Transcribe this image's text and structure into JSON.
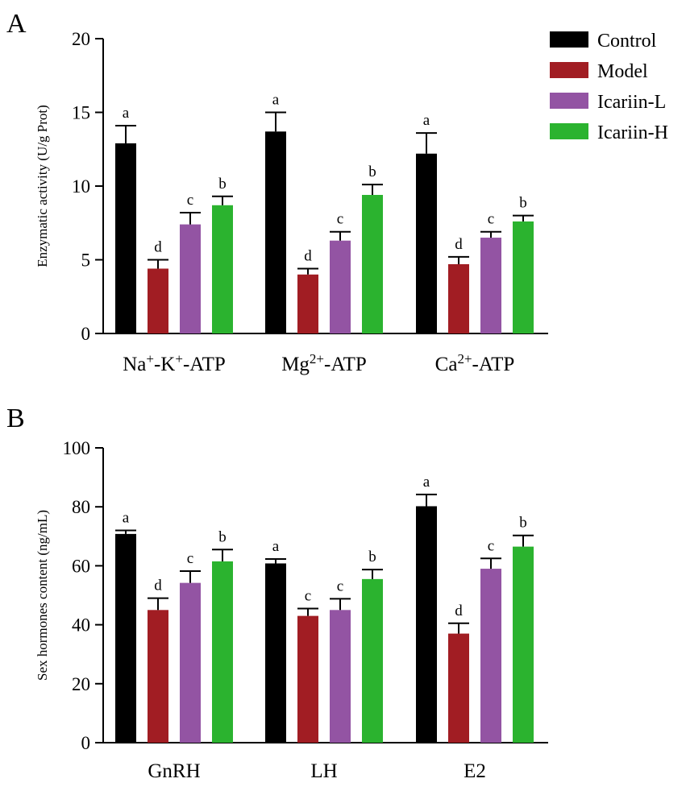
{
  "legend": [
    {
      "name": "Control",
      "color": "#000000"
    },
    {
      "name": "Model",
      "color": "#a11d23"
    },
    {
      "name": "Icariin-L",
      "color": "#9354a3"
    },
    {
      "name": "Icariin-H",
      "color": "#2bb32f"
    }
  ],
  "chart_data": [
    {
      "panel_label": "A",
      "type": "bar",
      "title": "",
      "xlabel": "",
      "ylabel": "Enzymatic activity (U/g Prot)",
      "ylim": [
        0,
        20
      ],
      "yticks": [
        "0",
        "5",
        "10",
        "15",
        "20"
      ],
      "ytick_values": [
        0,
        5,
        10,
        15,
        20
      ],
      "categories": [
        {
          "base": "Na",
          "parts": [
            [
              "Na",
              false
            ],
            [
              "+",
              true
            ],
            [
              "-K",
              false
            ],
            [
              "+",
              true
            ],
            [
              "-ATP",
              false
            ]
          ]
        },
        {
          "base": "Mg",
          "parts": [
            [
              "Mg",
              false
            ],
            [
              "2+",
              true
            ],
            [
              "-ATP",
              false
            ]
          ]
        },
        {
          "base": "Ca",
          "parts": [
            [
              "Ca",
              false
            ],
            [
              "2+",
              true
            ],
            [
              "-ATP",
              false
            ]
          ]
        }
      ],
      "series": [
        {
          "name": "Control",
          "values": [
            12.9,
            13.7,
            12.2
          ],
          "errors": [
            1.2,
            1.3,
            1.4
          ],
          "letters": [
            "a",
            "a",
            "a"
          ]
        },
        {
          "name": "Model",
          "values": [
            4.4,
            4.0,
            4.7
          ],
          "errors": [
            0.6,
            0.4,
            0.5
          ],
          "letters": [
            "d",
            "d",
            "d"
          ]
        },
        {
          "name": "Icariin-L",
          "values": [
            7.4,
            6.3,
            6.5
          ],
          "errors": [
            0.8,
            0.6,
            0.4
          ],
          "letters": [
            "c",
            "c",
            "c"
          ]
        },
        {
          "name": "Icariin-H",
          "values": [
            8.7,
            9.4,
            7.6
          ],
          "errors": [
            0.6,
            0.7,
            0.4
          ],
          "letters": [
            "b",
            "b",
            "b"
          ]
        }
      ]
    },
    {
      "panel_label": "B",
      "type": "bar",
      "title": "",
      "xlabel": "",
      "ylabel": "Sex hormones content (ng/mL)",
      "ylim": [
        0,
        100
      ],
      "yticks": [
        "0",
        "20",
        "40",
        "60",
        "80",
        "100"
      ],
      "ytick_values": [
        0,
        20,
        40,
        60,
        80,
        100
      ],
      "categories": [
        {
          "base": "GnRH",
          "parts": [
            [
              "GnRH",
              false
            ]
          ]
        },
        {
          "base": "LH",
          "parts": [
            [
              "LH",
              false
            ]
          ]
        },
        {
          "base": "E2",
          "parts": [
            [
              "E2",
              false
            ]
          ]
        }
      ],
      "series": [
        {
          "name": "Control",
          "values": [
            70.8,
            60.8,
            80.2
          ],
          "errors": [
            1.2,
            1.5,
            4.0
          ],
          "letters": [
            "a",
            "a",
            "a"
          ]
        },
        {
          "name": "Model",
          "values": [
            45.0,
            43.0,
            37.0
          ],
          "errors": [
            4.0,
            2.5,
            3.5
          ],
          "letters": [
            "d",
            "c",
            "d"
          ]
        },
        {
          "name": "Icariin-L",
          "values": [
            54.2,
            45.0,
            59.0
          ],
          "errors": [
            4.0,
            3.8,
            3.5
          ],
          "letters": [
            "c",
            "c",
            "c"
          ]
        },
        {
          "name": "Icariin-H",
          "values": [
            61.5,
            55.5,
            66.5
          ],
          "errors": [
            4.0,
            3.2,
            3.8
          ],
          "letters": [
            "b",
            "b",
            "b"
          ]
        }
      ]
    }
  ]
}
